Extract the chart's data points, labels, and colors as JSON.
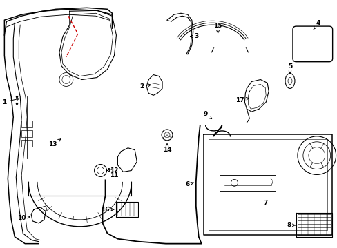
{
  "background_color": "#ffffff",
  "line_color": "#000000",
  "red_line_color": "#cc0000",
  "figsize": [
    4.89,
    3.6
  ],
  "dpi": 100
}
